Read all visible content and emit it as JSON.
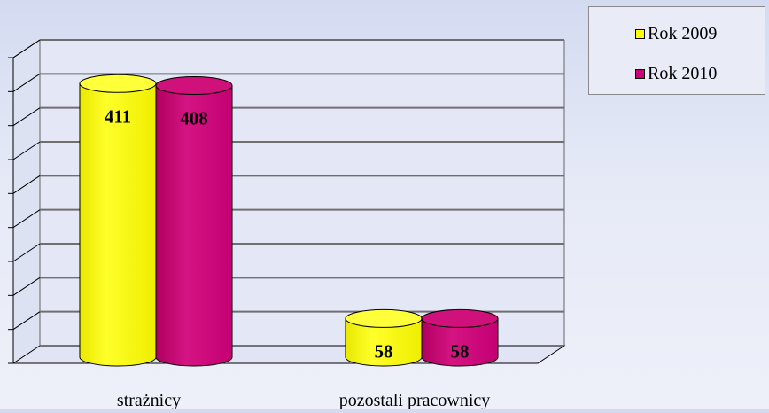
{
  "chart_data": {
    "type": "bar",
    "variant": "3d-cylinder",
    "categories": [
      "strażnicy",
      "pozostali pracownicy"
    ],
    "series": [
      {
        "name": "Rok 2009",
        "values": [
          411,
          58
        ],
        "color": "#ffff00"
      },
      {
        "name": "Rok 2010",
        "values": [
          408,
          58
        ],
        "color": "#cc0077"
      }
    ],
    "ylim": [
      0,
      450
    ],
    "ytick_step": 50,
    "grid": true,
    "legend_position": "top-right",
    "data_labels": true
  }
}
